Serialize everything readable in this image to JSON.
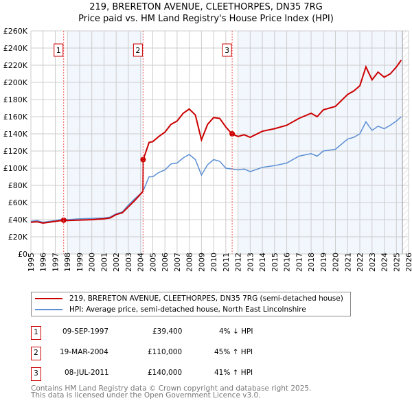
{
  "title": "219, BRERETON AVENUE, CLEETHORPES, DN35 7RG",
  "subtitle": "Price paid vs. HM Land Registry's House Price Index (HPI)",
  "chart_data": {
    "type": "line",
    "xlim": [
      1995,
      2026
    ],
    "ylim": [
      0,
      260000
    ],
    "x_ticks": [
      "1995",
      "1996",
      "1997",
      "1998",
      "1999",
      "2000",
      "2001",
      "2002",
      "2003",
      "2004",
      "2005",
      "2006",
      "2007",
      "2008",
      "2009",
      "2010",
      "2011",
      "2012",
      "2013",
      "2014",
      "2015",
      "2016",
      "2017",
      "2018",
      "2019",
      "2020",
      "2021",
      "2022",
      "2023",
      "2024",
      "2025",
      "2026"
    ],
    "y_ticks": [
      "£0",
      "£20K",
      "£40K",
      "£60K",
      "£80K",
      "£100K",
      "£120K",
      "£140K",
      "£160K",
      "£180K",
      "£200K",
      "£220K",
      "£240K",
      "£260K"
    ],
    "series": [
      {
        "name": "219, BRERETON AVENUE, CLEETHORPES, DN35 7RG (semi-detached house)",
        "color": "#cc0000",
        "x": [
          1995,
          1995.5,
          1996,
          1996.5,
          1997,
          1997.7,
          1998,
          1999,
          2000,
          2001,
          2001.5,
          2002,
          2002.5,
          2003,
          2003.5,
          2004.2,
          2004.22,
          2004.7,
          2005,
          2005.5,
          2006,
          2006.5,
          2007,
          2007.5,
          2008,
          2008.5,
          2009,
          2009.5,
          2010,
          2010.5,
          2011,
          2011.5,
          2012,
          2012.5,
          2013,
          2014,
          2015,
          2016,
          2017,
          2018,
          2018.5,
          2019,
          2020,
          2021,
          2021.5,
          2022,
          2022.5,
          2023,
          2023.5,
          2024,
          2024.5,
          2025,
          2025.4
        ],
        "y": [
          37000,
          37500,
          36000,
          37000,
          38000,
          39400,
          39000,
          39500,
          40000,
          41000,
          42000,
          46000,
          48000,
          55000,
          62000,
          73000,
          110000,
          130000,
          131000,
          137000,
          142000,
          151000,
          155000,
          164000,
          169000,
          162000,
          133000,
          151000,
          159000,
          158000,
          148000,
          140000,
          137000,
          139000,
          136000,
          143000,
          146000,
          150000,
          158000,
          164000,
          160000,
          168000,
          172000,
          186000,
          190000,
          196000,
          218000,
          203000,
          212000,
          206000,
          210000,
          218000,
          226000
        ]
      },
      {
        "name": "HPI: Average price, semi-detached house, North East Lincolnshire",
        "color": "#5b8fd4",
        "x": [
          1995,
          1995.5,
          1996,
          1996.5,
          1997,
          1997.7,
          1998,
          1999,
          2000,
          2001,
          2001.5,
          2002,
          2002.5,
          2003,
          2003.5,
          2004.2,
          2004.7,
          2005,
          2005.5,
          2006,
          2006.5,
          2007,
          2007.5,
          2008,
          2008.5,
          2009,
          2009.5,
          2010,
          2010.5,
          2011,
          2011.5,
          2012,
          2012.5,
          2013,
          2014,
          2015,
          2016,
          2017,
          2018,
          2018.5,
          2019,
          2020,
          2021,
          2021.5,
          2022,
          2022.5,
          2023,
          2023.5,
          2024,
          2024.5,
          2025,
          2025.4
        ],
        "y": [
          38000,
          39000,
          37000,
          38000,
          39000,
          41000,
          40000,
          41000,
          41500,
          42000,
          43000,
          47000,
          49000,
          57000,
          64000,
          73000,
          90000,
          90000,
          95000,
          98000,
          105000,
          106000,
          112000,
          116000,
          110000,
          92000,
          104000,
          110000,
          108000,
          100000,
          99000,
          98000,
          99000,
          96000,
          101000,
          103000,
          106000,
          114000,
          117000,
          114000,
          120000,
          122000,
          134000,
          136000,
          140000,
          154000,
          144000,
          149000,
          146000,
          150000,
          155000,
          160000
        ]
      }
    ],
    "sales": [
      {
        "label": "1",
        "x": 1997.69,
        "y": 39400
      },
      {
        "label": "2",
        "x": 2004.21,
        "y": 110000
      },
      {
        "label": "3",
        "x": 2011.52,
        "y": 140000
      }
    ]
  },
  "legend": {
    "red": "219, BRERETON AVENUE, CLEETHORPES, DN35 7RG (semi-detached house)",
    "blue": "HPI: Average price, semi-detached house, North East Lincolnshire"
  },
  "transactions": [
    {
      "num": "1",
      "date": "09-SEP-1997",
      "price": "£39,400",
      "hpi": "4% ↓ HPI"
    },
    {
      "num": "2",
      "date": "19-MAR-2004",
      "price": "£110,000",
      "hpi": "45% ↑ HPI"
    },
    {
      "num": "3",
      "date": "08-JUL-2011",
      "price": "£140,000",
      "hpi": "41% ↑ HPI"
    }
  ],
  "footer": {
    "line1": "Contains HM Land Registry data © Crown copyright and database right 2025.",
    "line2": "This data is licensed under the Open Government Licence v3.0."
  }
}
